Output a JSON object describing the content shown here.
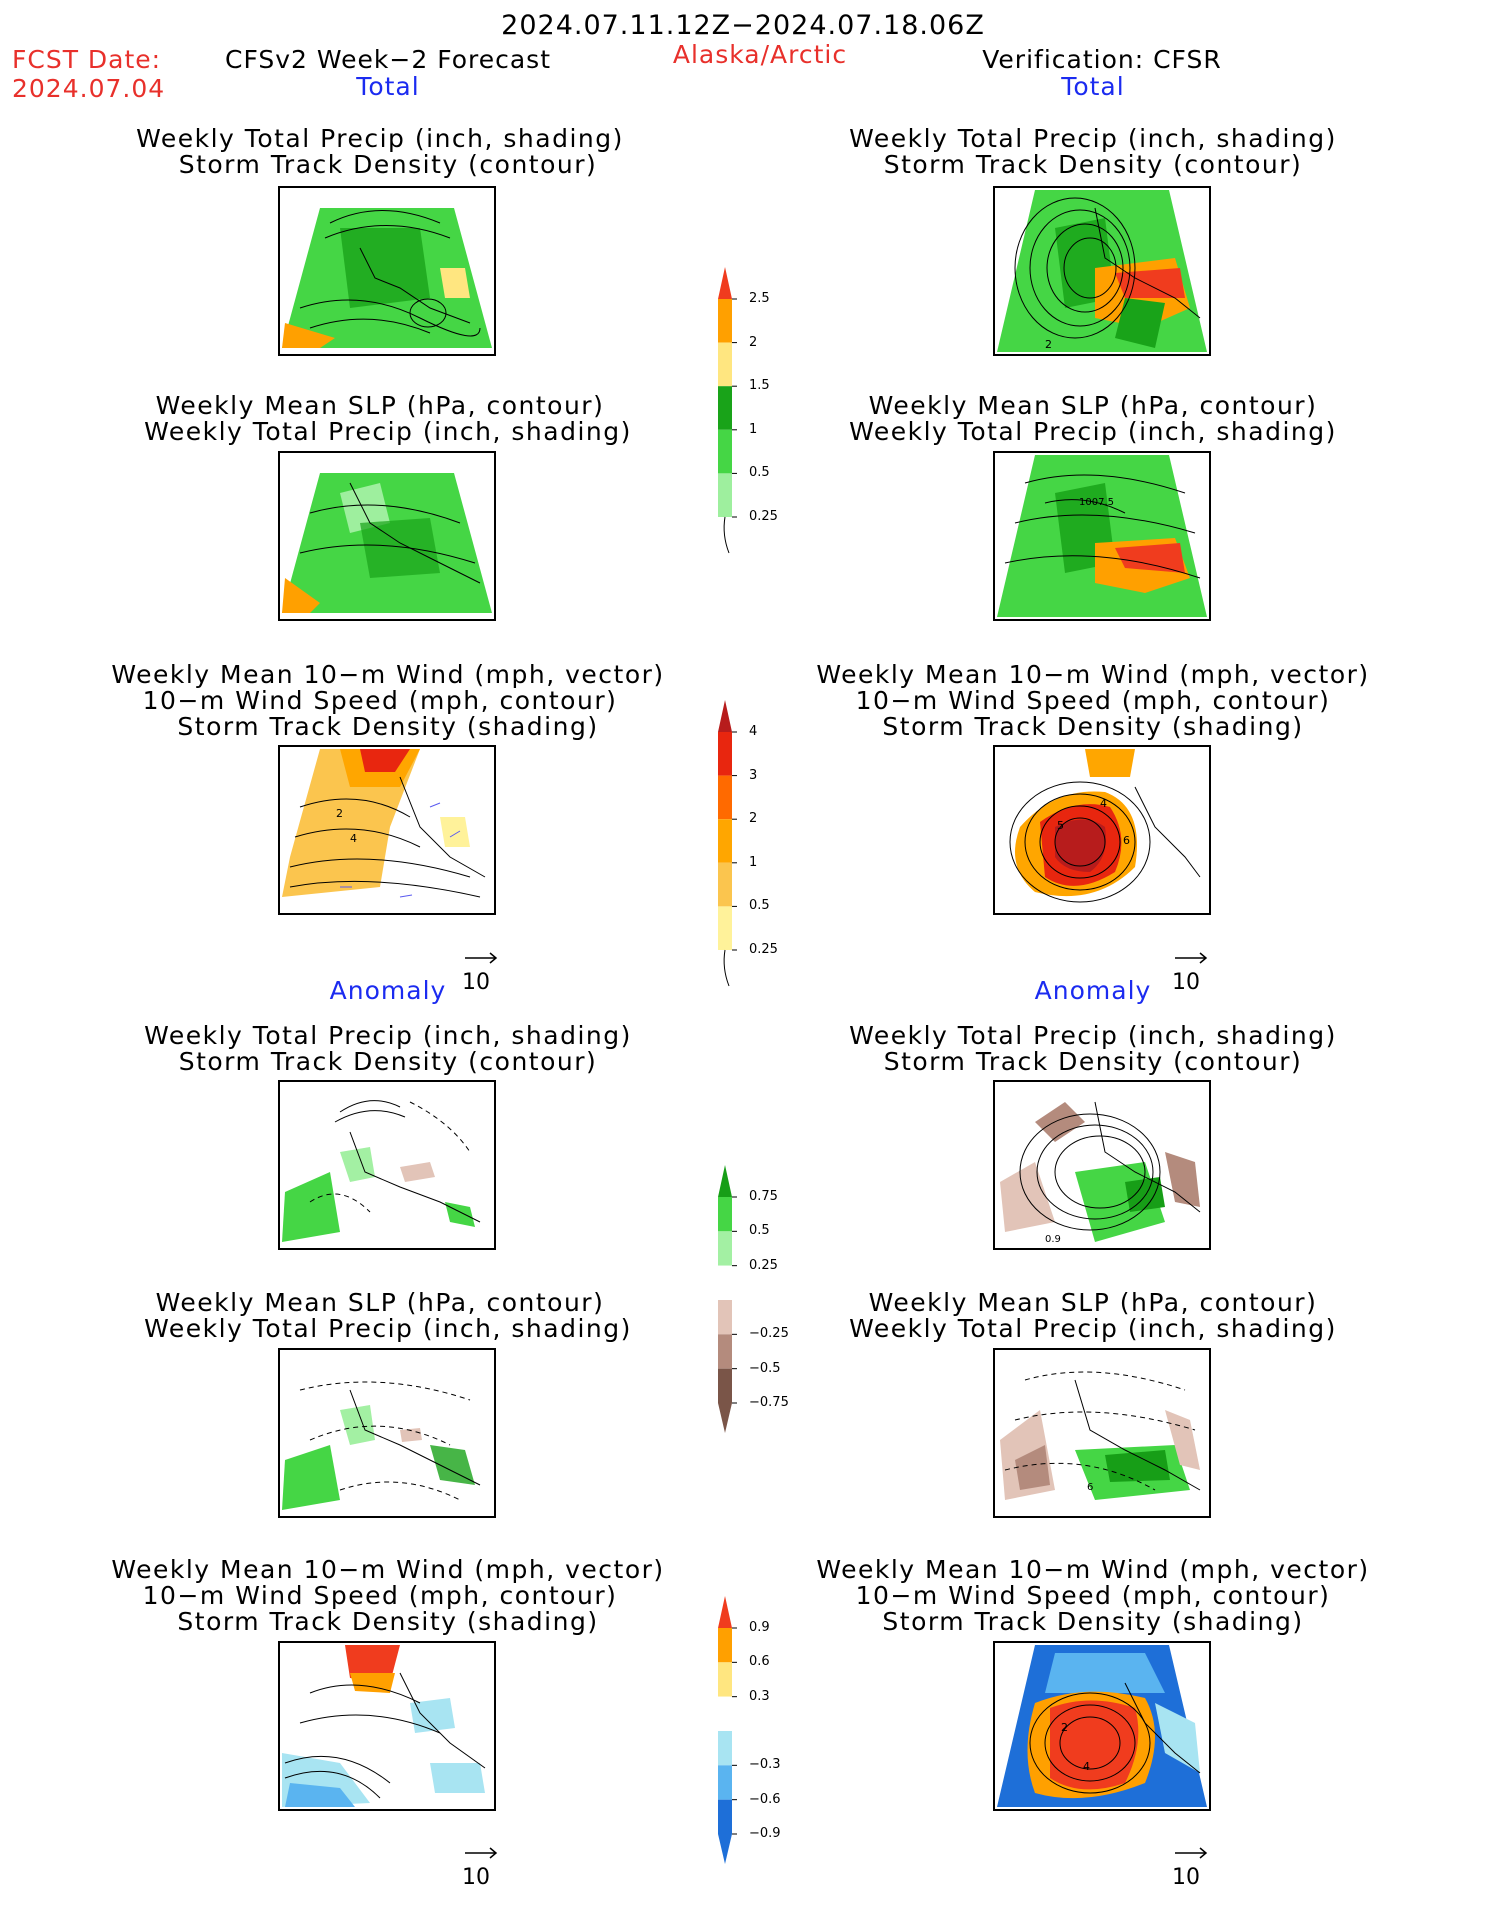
{
  "header": {
    "period": "2024.07.11.12Z−2024.07.18.06Z",
    "fcst_label": "FCST Date:",
    "fcst_date": "2024.07.04",
    "model": "CFSv2 Week−2 Forecast",
    "region": "Alaska/Arctic",
    "verification": "Verification: CFSR"
  },
  "sections": {
    "total": "Total",
    "anomaly": "Anomaly"
  },
  "titles": {
    "precip_storm": [
      "Weekly Total Precip (inch, shading)",
      "Storm Track Density (contour)"
    ],
    "slp_precip": [
      "Weekly Mean SLP (hPa, contour)",
      "Weekly Total Precip (inch, shading)"
    ],
    "wind_storm": [
      "Weekly Mean 10−m Wind (mph, vector)",
      "10−m Wind Speed (mph, contour)",
      "Storm Track Density (shading)"
    ]
  },
  "vector_ref": "10",
  "contour_labels": {
    "fc_total_wind_a": "2",
    "fc_total_wind_b": "4",
    "ob_total_precip": "2",
    "ob_total_slp": "1007.5",
    "ob_total_wind_a": "5",
    "ob_total_wind_b": "4",
    "ob_total_wind_c": "6",
    "ob_anom_precip": "0.9",
    "ob_anom_slp": "6",
    "ob_anom_wind_a": "2",
    "ob_anom_wind_b": "4"
  },
  "colorbars": {
    "precip_total": {
      "ticks": [
        "2.5",
        "2",
        "1.5",
        "1",
        "0.5",
        "0.25"
      ],
      "colors": [
        "#f03c1e",
        "#ffa000",
        "#ffe680",
        "#19a319",
        "#45d645",
        "#9eef9e"
      ]
    },
    "storm_total": {
      "ticks": [
        "4",
        "3",
        "2",
        "1",
        "0.5",
        "0.25"
      ],
      "colors": [
        "#b71c1c",
        "#e8260f",
        "#ff6a00",
        "#ffa600",
        "#fbc54e",
        "#fff29a"
      ]
    },
    "precip_anom": {
      "ticks": [
        "0.75",
        "0.5",
        "0.25",
        "−0.25",
        "−0.5",
        "−0.75"
      ],
      "colors": [
        "#179e17",
        "#45d645",
        "#a3f0a3",
        "#ffffff",
        "#e2c4b8",
        "#b48b7d",
        "#7a5548"
      ]
    },
    "storm_anom": {
      "ticks": [
        "0.9",
        "0.6",
        "0.3",
        "−0.3",
        "−0.6",
        "−0.9"
      ],
      "colors": [
        "#f03c1e",
        "#ffa000",
        "#ffe680",
        "#ffffff",
        "#a8e4f2",
        "#5ab4f0",
        "#1e6fd8"
      ]
    }
  }
}
